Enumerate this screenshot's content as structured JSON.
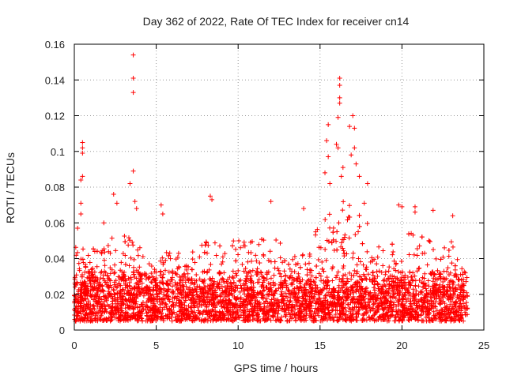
{
  "chart_data": {
    "type": "scatter",
    "title": "Day 362 of 2022, Rate Of TEC Index for receiver cn14",
    "xlabel": "GPS time / hours",
    "ylabel": "ROTI / TECUs",
    "xlim": [
      0,
      25
    ],
    "ylim": [
      0,
      0.16
    ],
    "xticks": [
      0,
      5,
      10,
      15,
      20,
      25
    ],
    "yticks": [
      0,
      0.02,
      0.04,
      0.06,
      0.08,
      0.1,
      0.12,
      0.14,
      0.16
    ],
    "ytick_labels": [
      "0",
      "0.02",
      "0.04",
      "0.06",
      "0.08",
      "0.1",
      "0.12",
      "0.14",
      "0.16"
    ],
    "grid": true,
    "marker": "+",
    "color": "#ff0000",
    "data_extent_hours": [
      0,
      24
    ],
    "baseline_band": [
      0.005,
      0.035
    ],
    "notable_points": [
      {
        "x": 0.5,
        "y": 0.105
      },
      {
        "x": 0.5,
        "y": 0.102
      },
      {
        "x": 0.5,
        "y": 0.099
      },
      {
        "x": 0.4,
        "y": 0.084
      },
      {
        "x": 0.5,
        "y": 0.086
      },
      {
        "x": 0.4,
        "y": 0.071
      },
      {
        "x": 0.4,
        "y": 0.065
      },
      {
        "x": 0.2,
        "y": 0.057
      },
      {
        "x": 1.8,
        "y": 0.06
      },
      {
        "x": 2.4,
        "y": 0.076
      },
      {
        "x": 2.6,
        "y": 0.071
      },
      {
        "x": 3.4,
        "y": 0.082
      },
      {
        "x": 3.6,
        "y": 0.154
      },
      {
        "x": 3.6,
        "y": 0.141
      },
      {
        "x": 3.6,
        "y": 0.133
      },
      {
        "x": 3.6,
        "y": 0.089
      },
      {
        "x": 3.7,
        "y": 0.072
      },
      {
        "x": 3.8,
        "y": 0.068
      },
      {
        "x": 5.3,
        "y": 0.07
      },
      {
        "x": 5.4,
        "y": 0.065
      },
      {
        "x": 8.3,
        "y": 0.075
      },
      {
        "x": 8.4,
        "y": 0.073
      },
      {
        "x": 12.0,
        "y": 0.072
      },
      {
        "x": 14.0,
        "y": 0.068
      },
      {
        "x": 15.5,
        "y": 0.115
      },
      {
        "x": 15.4,
        "y": 0.106
      },
      {
        "x": 15.5,
        "y": 0.097
      },
      {
        "x": 15.3,
        "y": 0.088
      },
      {
        "x": 15.6,
        "y": 0.082
      },
      {
        "x": 16.2,
        "y": 0.141
      },
      {
        "x": 16.2,
        "y": 0.137
      },
      {
        "x": 16.2,
        "y": 0.13
      },
      {
        "x": 16.2,
        "y": 0.127
      },
      {
        "x": 16.1,
        "y": 0.119
      },
      {
        "x": 16.0,
        "y": 0.104
      },
      {
        "x": 16.1,
        "y": 0.102
      },
      {
        "x": 16.3,
        "y": 0.086
      },
      {
        "x": 16.4,
        "y": 0.091
      },
      {
        "x": 16.8,
        "y": 0.114
      },
      {
        "x": 17.0,
        "y": 0.12
      },
      {
        "x": 17.1,
        "y": 0.113
      },
      {
        "x": 17.1,
        "y": 0.102
      },
      {
        "x": 16.9,
        "y": 0.098
      },
      {
        "x": 17.2,
        "y": 0.093
      },
      {
        "x": 17.4,
        "y": 0.086
      },
      {
        "x": 17.9,
        "y": 0.082
      },
      {
        "x": 17.7,
        "y": 0.071
      },
      {
        "x": 19.8,
        "y": 0.07
      },
      {
        "x": 20.0,
        "y": 0.069
      },
      {
        "x": 20.8,
        "y": 0.069
      },
      {
        "x": 20.8,
        "y": 0.066
      },
      {
        "x": 21.9,
        "y": 0.067
      },
      {
        "x": 23.1,
        "y": 0.064
      }
    ],
    "activity_profile": [
      {
        "x": 0.0,
        "y": 0.05
      },
      {
        "x": 1.0,
        "y": 0.045
      },
      {
        "x": 2.0,
        "y": 0.05
      },
      {
        "x": 3.0,
        "y": 0.055
      },
      {
        "x": 4.0,
        "y": 0.05
      },
      {
        "x": 5.0,
        "y": 0.045
      },
      {
        "x": 6.0,
        "y": 0.045
      },
      {
        "x": 7.0,
        "y": 0.045
      },
      {
        "x": 8.0,
        "y": 0.05
      },
      {
        "x": 9.0,
        "y": 0.05
      },
      {
        "x": 10.0,
        "y": 0.05
      },
      {
        "x": 11.0,
        "y": 0.055
      },
      {
        "x": 12.0,
        "y": 0.06
      },
      {
        "x": 13.0,
        "y": 0.05
      },
      {
        "x": 14.0,
        "y": 0.05
      },
      {
        "x": 15.0,
        "y": 0.06
      },
      {
        "x": 16.0,
        "y": 0.075
      },
      {
        "x": 17.0,
        "y": 0.07
      },
      {
        "x": 18.0,
        "y": 0.06
      },
      {
        "x": 19.0,
        "y": 0.045
      },
      {
        "x": 20.0,
        "y": 0.055
      },
      {
        "x": 21.0,
        "y": 0.055
      },
      {
        "x": 22.0,
        "y": 0.05
      },
      {
        "x": 23.0,
        "y": 0.05
      },
      {
        "x": 24.0,
        "y": 0.035
      }
    ]
  }
}
